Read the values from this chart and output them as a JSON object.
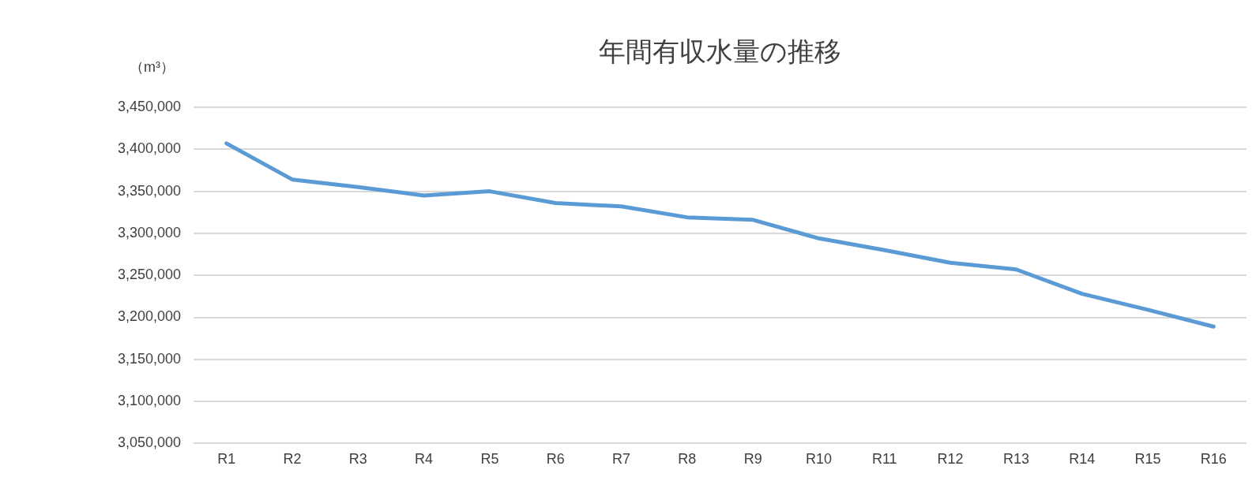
{
  "chart_data": {
    "type": "line",
    "title": "年間有収水量の推移",
    "ylabel": "（m³）",
    "categories": [
      "R1",
      "R2",
      "R3",
      "R4",
      "R5",
      "R6",
      "R7",
      "R8",
      "R9",
      "R10",
      "R11",
      "R12",
      "R13",
      "R14",
      "R15",
      "R16"
    ],
    "series": [
      {
        "color": "#5b9bd5",
        "values": [
          3407000,
          3364000,
          3355000,
          3345000,
          3350000,
          3336000,
          3332000,
          3319000,
          3316000,
          3294000,
          3280000,
          3265000,
          3257000,
          3228000,
          3209000,
          3189000
        ]
      }
    ],
    "ylim": [
      3050000,
      3450000
    ],
    "yticks": [
      {
        "value": 3050000,
        "label": "3,050,000"
      },
      {
        "value": 3100000,
        "label": "3,100,000"
      },
      {
        "value": 3150000,
        "label": "3,150,000"
      },
      {
        "value": 3200000,
        "label": "3,200,000"
      },
      {
        "value": 3250000,
        "label": "3,250,000"
      },
      {
        "value": 3300000,
        "label": "3,300,000"
      },
      {
        "value": 3350000,
        "label": "3,350,000"
      },
      {
        "value": 3400000,
        "label": "3,400,000"
      },
      {
        "value": 3450000,
        "label": "3,450,000"
      }
    ],
    "grid": "y",
    "legend": false,
    "marker": "none",
    "line_style": "solid"
  }
}
